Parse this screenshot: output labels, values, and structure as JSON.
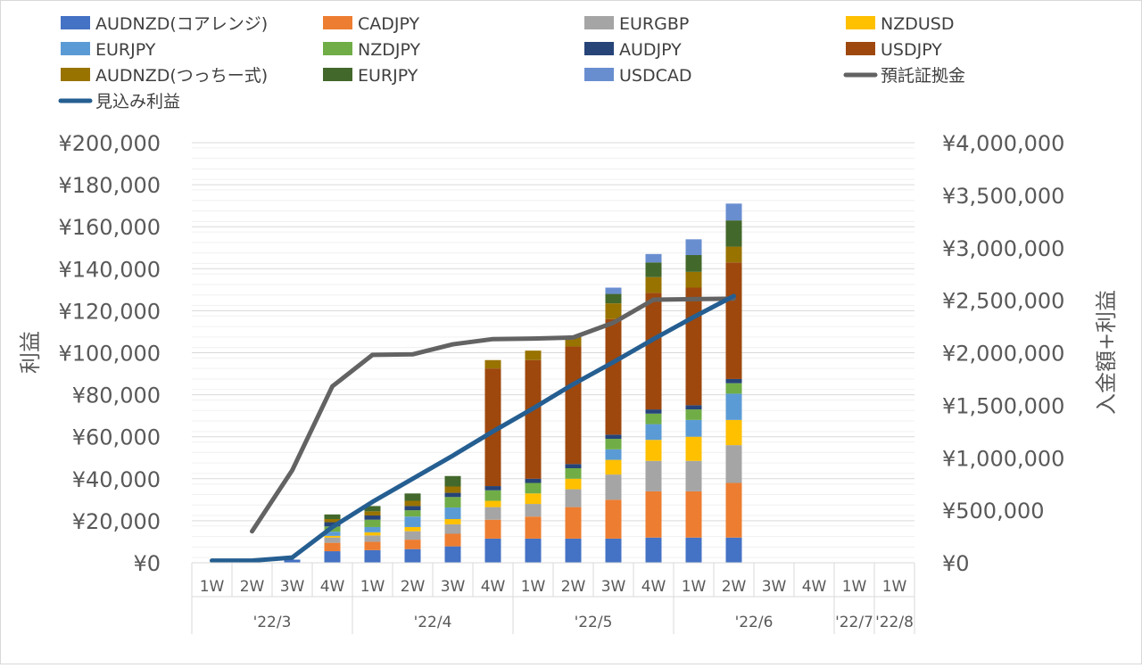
{
  "chart_data": {
    "type": "bar",
    "stacked": true,
    "x_weeks": [
      "1W",
      "2W",
      "3W",
      "4W",
      "1W",
      "2W",
      "3W",
      "4W",
      "1W",
      "2W",
      "3W",
      "4W",
      "1W",
      "2W",
      "3W",
      "4W",
      "1W",
      "1W"
    ],
    "x_months": [
      {
        "label": "'22/3",
        "span": 4
      },
      {
        "label": "'22/4",
        "span": 4
      },
      {
        "label": "'22/5",
        "span": 4
      },
      {
        "label": "'22/6",
        "span": 4
      },
      {
        "label": "'22/7",
        "span": 1
      },
      {
        "label": "'22/8",
        "span": 1
      }
    ],
    "ylabel": "利益",
    "y2label": "入金額+利益",
    "ylim": [
      0,
      200000
    ],
    "y2lim": [
      0,
      4000000
    ],
    "y_ticks": [
      "¥0",
      "¥20,000",
      "¥40,000",
      "¥60,000",
      "¥80,000",
      "¥100,000",
      "¥120,000",
      "¥140,000",
      "¥160,000",
      "¥180,000",
      "¥200,000"
    ],
    "y2_ticks": [
      "¥0",
      "¥500,000",
      "¥1,000,000",
      "¥1,500,000",
      "¥2,000,000",
      "¥2,500,000",
      "¥3,000,000",
      "¥3,500,000",
      "¥4,000,000"
    ],
    "legend_position": "top",
    "series": [
      {
        "name": "AUDNZD(コアレンジ)",
        "color": "#4472C4",
        "values": [
          0,
          0,
          1500,
          5500,
          6000,
          6500,
          7800,
          11500,
          11500,
          11500,
          11500,
          12000,
          12000,
          12000,
          null,
          null,
          null,
          null
        ]
      },
      {
        "name": "CADJPY",
        "color": "#ED7D31",
        "values": [
          0,
          0,
          0,
          4000,
          4000,
          4500,
          6000,
          9000,
          10500,
          15000,
          18500,
          22000,
          22000,
          26000,
          null,
          null,
          null,
          null
        ]
      },
      {
        "name": "EURGBP",
        "color": "#A5A5A5",
        "values": [
          0,
          0,
          0,
          2500,
          3000,
          4000,
          4500,
          6000,
          6000,
          8500,
          12000,
          14500,
          14500,
          18000,
          null,
          null,
          null,
          null
        ]
      },
      {
        "name": "NZDUSD",
        "color": "#FFC000",
        "values": [
          0,
          0,
          0,
          800,
          1500,
          2000,
          2500,
          3000,
          5000,
          5000,
          7000,
          10000,
          11500,
          12000,
          null,
          null,
          null,
          null
        ]
      },
      {
        "name": "EURJPY",
        "color": "#5B9BD5",
        "values": [
          0,
          0,
          0,
          2000,
          2500,
          5000,
          5500,
          0,
          0,
          0,
          5000,
          7500,
          8000,
          12500,
          null,
          null,
          null,
          null
        ]
      },
      {
        "name": "NZDJPY",
        "color": "#70AD47",
        "values": [
          0,
          0,
          0,
          2500,
          3500,
          3000,
          5000,
          5000,
          5000,
          5000,
          5000,
          5000,
          5000,
          5000,
          null,
          null,
          null,
          null
        ]
      },
      {
        "name": "AUDJPY",
        "color": "#264478",
        "values": [
          0,
          0,
          0,
          2000,
          2000,
          2000,
          2000,
          2000,
          2000,
          2000,
          2000,
          2000,
          2000,
          2000,
          null,
          null,
          null,
          null
        ]
      },
      {
        "name": "USDJPY",
        "color": "#9E480E",
        "values": [
          0,
          0,
          0,
          0,
          0,
          0,
          0,
          56000,
          56500,
          56000,
          55000,
          55500,
          56000,
          55500,
          null,
          null,
          null,
          null
        ]
      },
      {
        "name": "AUDNZD(つっちー式)",
        "color": "#997300",
        "values": [
          0,
          0,
          0,
          1500,
          2000,
          2500,
          3000,
          4000,
          4500,
          5000,
          7500,
          7500,
          7500,
          7500,
          null,
          null,
          null,
          null
        ]
      },
      {
        "name": "EURJPY",
        "color": "#43682B",
        "values": [
          0,
          0,
          0,
          2200,
          2500,
          3500,
          5000,
          0,
          0,
          0,
          4500,
          7000,
          8000,
          12500,
          null,
          null,
          null,
          null
        ]
      },
      {
        "name": "USDCAD",
        "color": "#698ED0",
        "values": [
          0,
          0,
          0,
          0,
          0,
          0,
          0,
          0,
          0,
          0,
          3000,
          4000,
          7500,
          8000,
          null,
          null,
          null,
          null
        ]
      }
    ],
    "lines": [
      {
        "name": "預託証拠金",
        "color": "#636363",
        "axis": "secondary",
        "values": [
          null,
          300000,
          880000,
          1680000,
          1980000,
          1985000,
          2080000,
          2130000,
          2135000,
          2145000,
          2285000,
          2505000,
          2510000,
          2515000,
          null,
          null,
          null,
          null
        ]
      },
      {
        "name": "見込み利益",
        "color": "#255E91",
        "axis": "primary",
        "values": [
          1000,
          1000,
          2500,
          17000,
          29000,
          40000,
          51000,
          62500,
          73500,
          85000,
          95500,
          106500,
          117000,
          127000,
          null,
          null,
          null,
          null
        ]
      }
    ]
  }
}
